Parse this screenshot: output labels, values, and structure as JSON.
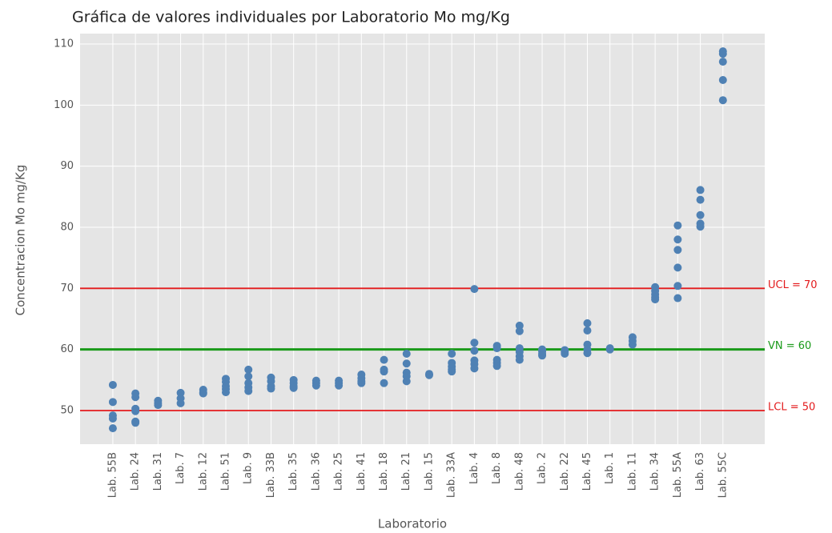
{
  "chart_data": {
    "type": "scatter",
    "title": "Gráfica de valores individuales por Laboratorio Mo mg/Kg",
    "x_label": "Laboratorio",
    "y_label": "Concentracion Mo mg/Kg",
    "categories": [
      "Lab. 55B",
      "Lab. 24",
      "Lab. 31",
      "Lab. 7",
      "Lab. 12",
      "Lab. 51",
      "Lab. 9",
      "Lab. 33B",
      "Lab. 35",
      "Lab. 36",
      "Lab. 25",
      "Lab. 41",
      "Lab. 18",
      "Lab. 21",
      "Lab. 15",
      "Lab. 33A",
      "Lab. 4",
      "Lab. 8",
      "Lab. 48",
      "Lab. 2",
      "Lab. 22",
      "Lab. 45",
      "Lab. 1",
      "Lab. 11",
      "Lab. 34",
      "Lab. 55A",
      "Lab. 63",
      "Lab. 55C"
    ],
    "values": [
      [
        54.2,
        51.4,
        49.2,
        48.7,
        47.1
      ],
      [
        52.8,
        52.2,
        50.3,
        49.9,
        48.2,
        48.0
      ],
      [
        51.6,
        51.2,
        50.9
      ],
      [
        52.9,
        52.0,
        51.2
      ],
      [
        53.4,
        53.0,
        52.8
      ],
      [
        55.2,
        54.7,
        54.0,
        53.5,
        53.0
      ],
      [
        56.7,
        55.6,
        54.5,
        53.8,
        53.2
      ],
      [
        55.4,
        54.8,
        54.0,
        53.6
      ],
      [
        55.0,
        54.5,
        54.0,
        53.7
      ],
      [
        54.9,
        54.5,
        54.1
      ],
      [
        54.9,
        54.5,
        54.1
      ],
      [
        55.9,
        55.3,
        54.8,
        54.5
      ],
      [
        58.3,
        56.7,
        56.4,
        54.5
      ],
      [
        59.3,
        57.7,
        56.2,
        55.6,
        54.8
      ],
      [
        56.0,
        55.8
      ],
      [
        59.3,
        57.8,
        57.2,
        56.7,
        56.4
      ],
      [
        69.9,
        61.1,
        59.8,
        58.2,
        57.6,
        56.9
      ],
      [
        60.6,
        60.2,
        58.3,
        57.8,
        57.3
      ],
      [
        63.9,
        63.0,
        60.2,
        59.6,
        58.9,
        58.3
      ],
      [
        60.0,
        59.7,
        59.3,
        59.0
      ],
      [
        59.9,
        59.6,
        59.3
      ],
      [
        64.3,
        63.1,
        60.8,
        60.0,
        59.4
      ],
      [
        60.2,
        60.0
      ],
      [
        62.0,
        61.4,
        60.8
      ],
      [
        70.2,
        69.6,
        69.0,
        68.5,
        68.2
      ],
      [
        80.3,
        78.0,
        76.3,
        73.4,
        70.4,
        68.4
      ],
      [
        86.1,
        84.5,
        82.0,
        80.6,
        80.1
      ],
      [
        108.8,
        108.4,
        107.1,
        104.1,
        100.8
      ]
    ],
    "color": "#4f81b4",
    "ylim": [
      44.5,
      111.7
    ],
    "yticks": [
      50,
      60,
      70,
      80,
      90,
      100,
      110
    ],
    "grid": true,
    "reference_lines": [
      {
        "value": 70,
        "label": "UCL = 70",
        "color": "#e31a1c"
      },
      {
        "value": 60,
        "label": "VN = 60",
        "color": "#1a9a1a"
      },
      {
        "value": 50,
        "label": "LCL = 50",
        "color": "#e31a1c"
      }
    ]
  }
}
